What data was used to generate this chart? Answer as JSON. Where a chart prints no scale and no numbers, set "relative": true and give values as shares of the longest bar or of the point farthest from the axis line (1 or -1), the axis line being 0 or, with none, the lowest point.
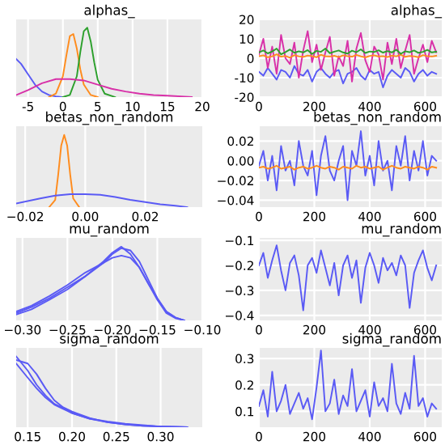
{
  "chart_data": [
    {
      "type": "line",
      "title": "alphas_",
      "relative": true,
      "tick_labels": "x",
      "grid": true,
      "xlim": [
        -6.7,
        20
      ],
      "xticks": [
        -5,
        0,
        5,
        10,
        15,
        20
      ],
      "series": [
        {
          "color": "#5a5af5",
          "x": [
            -6.7,
            -6,
            -5,
            -4,
            -3,
            -2,
            -1,
            0
          ],
          "values": [
            0.55,
            0.48,
            0.33,
            0.18,
            0.08,
            0.03,
            0.01,
            0.0
          ]
        },
        {
          "color": "#ff8c1e",
          "x": [
            -2,
            -1,
            0,
            0.5,
            1,
            1.5,
            2,
            2.5,
            3,
            4,
            5
          ],
          "values": [
            0,
            0.05,
            0.3,
            0.6,
            0.88,
            0.91,
            0.7,
            0.4,
            0.18,
            0.03,
            0
          ]
        },
        {
          "color": "#2ca02c",
          "x": [
            0,
            1,
            2,
            2.5,
            3,
            3.5,
            4,
            4.5,
            5,
            6,
            7.5
          ],
          "values": [
            0,
            0.03,
            0.3,
            0.65,
            0.95,
            1.0,
            0.8,
            0.5,
            0.25,
            0.05,
            0
          ]
        },
        {
          "color": "#d830a8",
          "x": [
            -6.7,
            -5,
            -3,
            -1,
            1,
            3,
            5,
            7,
            9,
            11,
            13,
            15,
            17,
            18.5
          ],
          "values": [
            0.03,
            0.1,
            0.2,
            0.26,
            0.26,
            0.24,
            0.18,
            0.12,
            0.08,
            0.05,
            0.03,
            0.02,
            0.01,
            0.0
          ]
        }
      ]
    },
    {
      "type": "line",
      "title": "alphas_",
      "grid": true,
      "xlim": [
        0,
        660
      ],
      "xticks": [
        0,
        200,
        400,
        600
      ],
      "ylim": [
        -20,
        20
      ],
      "yticks": [
        -20,
        -10,
        0,
        10,
        20
      ],
      "x": [
        0,
        16,
        32,
        48,
        64,
        80,
        96,
        112,
        128,
        144,
        160,
        176,
        192,
        208,
        224,
        240,
        256,
        272,
        288,
        304,
        320,
        336,
        352,
        368,
        384,
        400,
        416,
        432,
        448,
        464,
        480,
        496,
        512,
        528,
        544,
        560,
        576,
        592,
        608,
        624,
        640
      ],
      "series": [
        {
          "color": "#5a5af5",
          "values": [
            -7,
            -9,
            -5,
            -8,
            -11,
            -6,
            -7,
            -10,
            -4,
            -8,
            -9,
            -6,
            -12,
            -7,
            -5,
            -8,
            -10,
            -7,
            -6,
            -13,
            -8,
            -7,
            -5,
            -9,
            -11,
            -6,
            -8,
            -7,
            -15,
            -9,
            -6,
            -8,
            -10,
            -5,
            -7,
            -12,
            -8,
            -6,
            -9,
            -7,
            -8
          ]
        },
        {
          "color": "#d830a8",
          "values": [
            2,
            10,
            -5,
            6,
            -8,
            12,
            0,
            -3,
            8,
            -10,
            4,
            14,
            -2,
            7,
            -6,
            3,
            11,
            -9,
            1,
            -4,
            9,
            -12,
            5,
            13,
            -1,
            -7,
            6,
            2,
            -11,
            8,
            -3,
            10,
            -5,
            4,
            12,
            -8,
            0,
            7,
            -2,
            9,
            3
          ]
        },
        {
          "color": "#ff8c1e",
          "values": [
            1,
            1.5,
            0.5,
            1,
            2,
            0.8,
            1.2,
            0.3,
            1.6,
            1,
            0.7,
            1.4,
            1.1,
            0.5,
            1.8,
            1,
            0.9,
            1.3,
            0.6,
            1.5,
            1.1,
            0.8,
            1.7,
            1,
            0.4,
            1.2,
            1.5,
            0.9,
            1.1,
            0.6,
            1.4,
            1,
            1.8,
            0.7,
            1.2,
            1,
            0.5,
            1.6,
            1.1,
            0.9,
            1.3
          ]
        },
        {
          "color": "#2ca02c",
          "values": [
            3,
            4,
            2.5,
            3.5,
            5,
            2,
            3.2,
            4.5,
            2.8,
            3.6,
            3,
            4.2,
            2.2,
            3.8,
            3.3,
            5,
            2.6,
            3.4,
            4,
            3,
            2.4,
            3.9,
            3.1,
            4.6,
            2.7,
            3.5,
            3.2,
            4.1,
            2.9,
            3.7,
            3,
            4.4,
            2.3,
            3.6,
            3.1,
            4,
            2.8,
            3.3,
            4.3,
            3,
            3.4
          ]
        }
      ]
    },
    {
      "type": "line",
      "title": "betas_non_random",
      "relative": true,
      "tick_labels": "x",
      "grid": true,
      "xlim": [
        -0.023,
        0.039
      ],
      "xticks": [
        {
          "value": -0.02,
          "label": "−0.02"
        },
        {
          "value": 0,
          "label": "0.00"
        },
        {
          "value": 0.02,
          "label": "0.02"
        }
      ],
      "series": [
        {
          "color": "#ff8c1e",
          "x": [
            -0.012,
            -0.01,
            -0.009,
            -0.008,
            -0.007,
            -0.006,
            -0.005,
            -0.004,
            -0.002
          ],
          "values": [
            0,
            0.1,
            0.45,
            0.85,
            1.0,
            0.85,
            0.45,
            0.12,
            0
          ]
        },
        {
          "color": "#5a5af5",
          "x": [
            -0.023,
            -0.015,
            -0.01,
            -0.005,
            0,
            0.005,
            0.01,
            0.015,
            0.02,
            0.025,
            0.03,
            0.034
          ],
          "values": [
            0.05,
            0.12,
            0.16,
            0.18,
            0.18,
            0.17,
            0.14,
            0.1,
            0.07,
            0.04,
            0.02,
            0.0
          ]
        }
      ]
    },
    {
      "type": "line",
      "title": "betas_non_random",
      "grid": true,
      "xlim": [
        0,
        660
      ],
      "xticks": [
        0,
        200,
        400,
        600
      ],
      "ylim": [
        -0.047,
        0.035
      ],
      "yticks": [
        {
          "value": -0.04,
          "label": "−0.04"
        },
        {
          "value": -0.02,
          "label": "−0.02"
        },
        {
          "value": 0,
          "label": "0.00"
        },
        {
          "value": 0.02,
          "label": "0.02"
        }
      ],
      "x": [
        0,
        16,
        32,
        48,
        64,
        80,
        96,
        112,
        128,
        144,
        160,
        176,
        192,
        208,
        224,
        240,
        256,
        272,
        288,
        304,
        320,
        336,
        352,
        368,
        384,
        400,
        416,
        432,
        448,
        464,
        480,
        496,
        512,
        528,
        544,
        560,
        576,
        592,
        608,
        624,
        640
      ],
      "series": [
        {
          "color": "#5a5af5",
          "values": [
            -0.005,
            0.01,
            -0.02,
            0.005,
            -0.03,
            0.015,
            -0.01,
            0.0,
            -0.025,
            0.02,
            -0.005,
            -0.015,
            0.01,
            -0.035,
            0.005,
            0.025,
            -0.01,
            -0.02,
            0.0,
            0.015,
            -0.04,
            0.01,
            -0.005,
            0.03,
            -0.015,
            0.005,
            -0.025,
            0.02,
            -0.01,
            0.0,
            -0.03,
            0.015,
            -0.005,
            0.025,
            -0.02,
            0.01,
            -0.01,
            0.02,
            -0.015,
            0.005,
            0.0
          ]
        },
        {
          "color": "#ff8c1e",
          "values": [
            -0.007,
            -0.006,
            -0.008,
            -0.007,
            -0.005,
            -0.008,
            -0.007,
            -0.006,
            -0.009,
            -0.007,
            -0.006,
            -0.008,
            -0.007,
            -0.005,
            -0.007,
            -0.008,
            -0.006,
            -0.007,
            -0.009,
            -0.006,
            -0.007,
            -0.008,
            -0.005,
            -0.007,
            -0.006,
            -0.008,
            -0.007,
            -0.006,
            -0.009,
            -0.007,
            -0.005,
            -0.007,
            -0.008,
            -0.006,
            -0.007,
            -0.008,
            -0.006,
            -0.007,
            -0.009,
            -0.006,
            -0.007
          ]
        }
      ]
    },
    {
      "type": "line",
      "title": "mu_random",
      "relative": true,
      "tick_labels": "x",
      "grid": true,
      "xlim": [
        -0.307,
        -0.1
      ],
      "xticks": [
        {
          "value": -0.3,
          "label": "−0.30"
        },
        {
          "value": -0.25,
          "label": "−0.25"
        },
        {
          "value": -0.2,
          "label": "−0.20"
        },
        {
          "value": -0.15,
          "label": "−0.15"
        },
        {
          "value": -0.1,
          "label": "−0.10"
        }
      ],
      "series": [
        {
          "color": "#5a5af5",
          "x": [
            -0.307,
            -0.29,
            -0.27,
            -0.25,
            -0.23,
            -0.21,
            -0.2,
            -0.19,
            -0.18,
            -0.17,
            -0.16,
            -0.15,
            -0.14,
            -0.13,
            -0.12
          ],
          "values": [
            0.1,
            0.18,
            0.3,
            0.45,
            0.6,
            0.78,
            0.9,
            0.98,
            0.95,
            0.8,
            0.55,
            0.3,
            0.12,
            0.04,
            0.0
          ]
        },
        {
          "color": "#5a5af5",
          "x": [
            -0.307,
            -0.29,
            -0.27,
            -0.25,
            -0.23,
            -0.21,
            -0.2,
            -0.19,
            -0.18,
            -0.17,
            -0.16,
            -0.15,
            -0.14,
            -0.13,
            -0.12
          ],
          "values": [
            0.08,
            0.15,
            0.28,
            0.42,
            0.6,
            0.8,
            0.92,
            1.0,
            0.9,
            0.72,
            0.5,
            0.28,
            0.1,
            0.03,
            0.0
          ]
        },
        {
          "color": "#5a5af5",
          "x": [
            -0.307,
            -0.29,
            -0.27,
            -0.25,
            -0.23,
            -0.21,
            -0.2,
            -0.19,
            -0.18,
            -0.17,
            -0.16,
            -0.15,
            -0.14,
            -0.13,
            -0.12
          ],
          "values": [
            0.12,
            0.2,
            0.33,
            0.48,
            0.65,
            0.78,
            0.85,
            0.88,
            0.85,
            0.72,
            0.5,
            0.3,
            0.12,
            0.04,
            0.0
          ]
        }
      ]
    },
    {
      "type": "line",
      "title": "mu_random",
      "grid": true,
      "xlim": [
        0,
        660
      ],
      "xticks": [
        0,
        200,
        400,
        600
      ],
      "ylim": [
        -0.42,
        -0.09
      ],
      "yticks": [
        {
          "value": -0.4,
          "label": "−0.4"
        },
        {
          "value": -0.3,
          "label": "−0.3"
        },
        {
          "value": -0.2,
          "label": "−0.2"
        },
        {
          "value": -0.1,
          "label": "−0.1"
        }
      ],
      "x": [
        0,
        16,
        32,
        48,
        64,
        80,
        96,
        112,
        128,
        144,
        160,
        176,
        192,
        208,
        224,
        240,
        256,
        272,
        288,
        304,
        320,
        336,
        352,
        368,
        384,
        400,
        416,
        432,
        448,
        464,
        480,
        496,
        512,
        528,
        544,
        560,
        576,
        592,
        608,
        624,
        640
      ],
      "series": [
        {
          "color": "#5a5af5",
          "values": [
            -0.2,
            -0.15,
            -0.25,
            -0.18,
            -0.12,
            -0.22,
            -0.3,
            -0.19,
            -0.16,
            -0.24,
            -0.38,
            -0.2,
            -0.17,
            -0.23,
            -0.14,
            -0.21,
            -0.28,
            -0.19,
            -0.32,
            -0.2,
            -0.16,
            -0.25,
            -0.18,
            -0.35,
            -0.21,
            -0.15,
            -0.2,
            -0.27,
            -0.17,
            -0.22,
            -0.19,
            -0.24,
            -0.16,
            -0.2,
            -0.37,
            -0.23,
            -0.18,
            -0.14,
            -0.21,
            -0.26,
            -0.2
          ]
        }
      ]
    },
    {
      "type": "line",
      "title": "sigma_random",
      "relative": true,
      "tick_labels": "x",
      "grid": true,
      "xlim": [
        0.137,
        0.347
      ],
      "xticks": [
        0.15,
        {
          "value": 0.2,
          "label": "0.20"
        },
        0.25,
        {
          "value": 0.3,
          "label": "0.30"
        }
      ],
      "series": [
        {
          "color": "#5a5af5",
          "x": [
            0.137,
            0.15,
            0.16,
            0.17,
            0.18,
            0.19,
            0.2,
            0.22,
            0.24,
            0.26,
            0.28,
            0.3,
            0.33
          ],
          "values": [
            1.0,
            0.8,
            0.6,
            0.45,
            0.33,
            0.27,
            0.2,
            0.12,
            0.07,
            0.04,
            0.02,
            0.01,
            0.0
          ]
        },
        {
          "color": "#5a5af5",
          "x": [
            0.137,
            0.15,
            0.16,
            0.17,
            0.18,
            0.19,
            0.2,
            0.22,
            0.24,
            0.26,
            0.28,
            0.3,
            0.33
          ],
          "values": [
            0.95,
            0.9,
            0.75,
            0.55,
            0.38,
            0.28,
            0.22,
            0.13,
            0.07,
            0.04,
            0.02,
            0.01,
            0.0
          ]
        },
        {
          "color": "#5a5af5",
          "x": [
            0.137,
            0.15,
            0.16,
            0.17,
            0.18,
            0.19,
            0.2,
            0.22,
            0.24,
            0.26,
            0.28,
            0.3,
            0.33
          ],
          "values": [
            0.9,
            0.7,
            0.55,
            0.42,
            0.32,
            0.26,
            0.2,
            0.12,
            0.08,
            0.05,
            0.03,
            0.01,
            0.0
          ]
        }
      ]
    },
    {
      "type": "line",
      "title": "sigma_random",
      "grid": true,
      "xlim": [
        0,
        660
      ],
      "xticks": [
        0,
        200,
        400,
        600
      ],
      "ylim": [
        0.04,
        0.34
      ],
      "yticks": [
        0.1,
        0.2,
        0.3
      ],
      "x": [
        0,
        16,
        32,
        48,
        64,
        80,
        96,
        112,
        128,
        144,
        160,
        176,
        192,
        208,
        224,
        240,
        256,
        272,
        288,
        304,
        320,
        336,
        352,
        368,
        384,
        400,
        416,
        432,
        448,
        464,
        480,
        496,
        512,
        528,
        544,
        560,
        576,
        592,
        608,
        624,
        640
      ],
      "series": [
        {
          "color": "#5a5af5",
          "values": [
            0.12,
            0.18,
            0.08,
            0.25,
            0.1,
            0.14,
            0.2,
            0.09,
            0.13,
            0.17,
            0.11,
            0.15,
            0.07,
            0.19,
            0.33,
            0.1,
            0.13,
            0.22,
            0.09,
            0.16,
            0.12,
            0.26,
            0.1,
            0.14,
            0.18,
            0.08,
            0.21,
            0.12,
            0.15,
            0.1,
            0.28,
            0.13,
            0.09,
            0.17,
            0.11,
            0.31,
            0.12,
            0.15,
            0.08,
            0.13,
            0.11
          ]
        }
      ]
    }
  ]
}
